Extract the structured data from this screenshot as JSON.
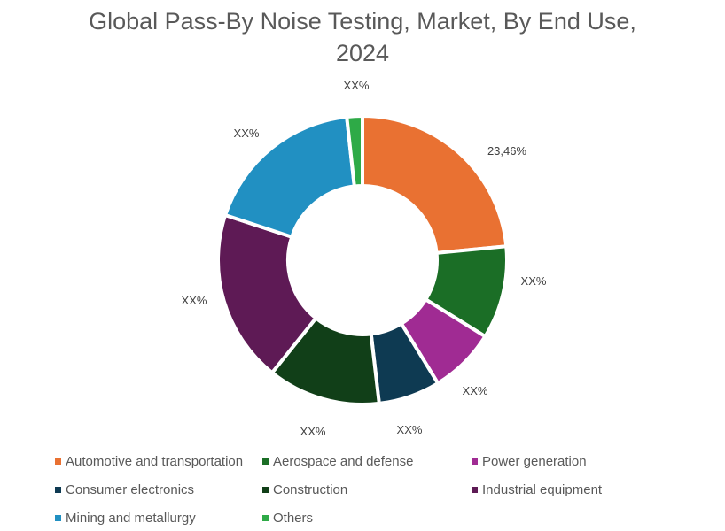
{
  "title": {
    "line1": "Global Pass-By Noise Testing, Market, By End Use,",
    "line2": "2024"
  },
  "chart_data": {
    "type": "pie",
    "subtype": "donut",
    "title": "Global Pass-By Noise Testing, Market, By End Use, 2024",
    "categories": [
      "Automotive and transportation",
      "Aerospace and defense",
      "Power generation",
      "Consumer electronics",
      "Construction",
      "Industrial equipment",
      "Mining and metallurgy",
      "Others"
    ],
    "values": [
      23.46,
      10.4,
      7.4,
      6.9,
      12.6,
      19.3,
      18.2,
      1.74
    ],
    "data_labels": [
      "23,46%",
      "XX%",
      "XX%",
      "XX%",
      "XX%",
      "XX%",
      "XX%",
      "XX%"
    ],
    "colors": [
      "#E97132",
      "#1B6E26",
      "#A02B93",
      "#0E3A52",
      "#113F18",
      "#5E1A55",
      "#2190C2",
      "#2EAA47"
    ],
    "legend_position": "bottom",
    "start_angle_deg": 0,
    "direction": "clockwise"
  },
  "legend": {
    "items": [
      {
        "label": "Automotive and transportation",
        "color": "#E97132"
      },
      {
        "label": "Aerospace and defense",
        "color": "#1B6E26"
      },
      {
        "label": "Power generation",
        "color": "#A02B93"
      },
      {
        "label": "Consumer electronics",
        "color": "#0E3A52"
      },
      {
        "label": "Construction",
        "color": "#113F18"
      },
      {
        "label": "Industrial equipment",
        "color": "#5E1A55"
      },
      {
        "label": "Mining and metallurgy",
        "color": "#2190C2"
      },
      {
        "label": "Others",
        "color": "#2EAA47"
      }
    ]
  }
}
